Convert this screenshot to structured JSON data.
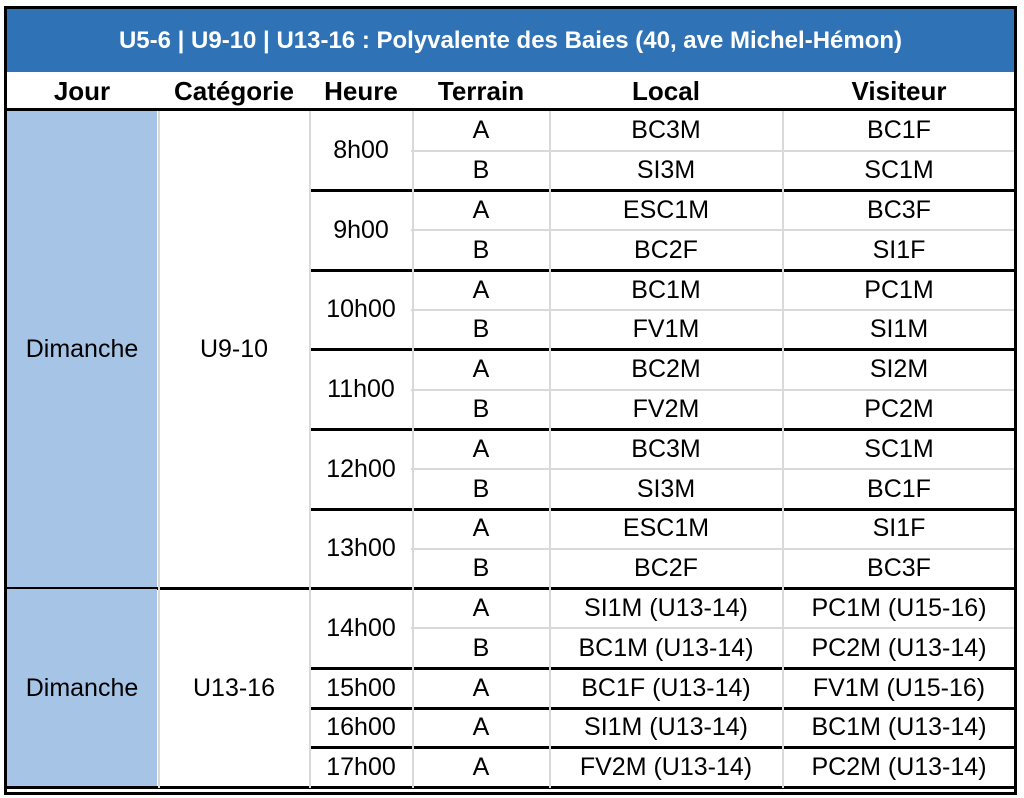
{
  "title": "U5-6 | U9-10 | U13-16  : Polyvalente des Baies (40, ave Michel-Hémon)",
  "headers": {
    "jour": "Jour",
    "categorie": "Catégorie",
    "heure": "Heure",
    "terrain": "Terrain",
    "local": "Local",
    "visiteur": "Visiteur"
  },
  "blocks": [
    {
      "jour": "Dimanche",
      "categorie": "U9-10",
      "slots": [
        {
          "heure": "8h00",
          "games": [
            {
              "terrain": "A",
              "local": "BC3M",
              "visiteur": "BC1F"
            },
            {
              "terrain": "B",
              "local": "SI3M",
              "visiteur": "SC1M"
            }
          ]
        },
        {
          "heure": "9h00",
          "games": [
            {
              "terrain": "A",
              "local": "ESC1M",
              "visiteur": "BC3F"
            },
            {
              "terrain": "B",
              "local": "BC2F",
              "visiteur": "SI1F"
            }
          ]
        },
        {
          "heure": "10h00",
          "games": [
            {
              "terrain": "A",
              "local": "BC1M",
              "visiteur": "PC1M"
            },
            {
              "terrain": "B",
              "local": "FV1M",
              "visiteur": "SI1M"
            }
          ]
        },
        {
          "heure": "11h00",
          "games": [
            {
              "terrain": "A",
              "local": "BC2M",
              "visiteur": "SI2M"
            },
            {
              "terrain": "B",
              "local": "FV2M",
              "visiteur": "PC2M"
            }
          ]
        },
        {
          "heure": "12h00",
          "games": [
            {
              "terrain": "A",
              "local": "BC3M",
              "visiteur": "SC1M"
            },
            {
              "terrain": "B",
              "local": "SI3M",
              "visiteur": "BC1F"
            }
          ]
        },
        {
          "heure": "13h00",
          "games": [
            {
              "terrain": "A",
              "local": "ESC1M",
              "visiteur": "SI1F"
            },
            {
              "terrain": "B",
              "local": "BC2F",
              "visiteur": "BC3F"
            }
          ]
        }
      ]
    },
    {
      "jour": "Dimanche",
      "categorie": "U13-16",
      "slots": [
        {
          "heure": "14h00",
          "games": [
            {
              "terrain": "A",
              "local": "SI1M (U13-14)",
              "visiteur": "PC1M (U15-16)"
            },
            {
              "terrain": "B",
              "local": "BC1M (U13-14)",
              "visiteur": "PC2M (U13-14)"
            }
          ]
        },
        {
          "heure": "15h00",
          "games": [
            {
              "terrain": "A",
              "local": "BC1F (U13-14)",
              "visiteur": "FV1M (U15-16)"
            }
          ]
        },
        {
          "heure": "16h00",
          "games": [
            {
              "terrain": "A",
              "local": "SI1M (U13-14)",
              "visiteur": "BC1M (U13-14)"
            }
          ]
        },
        {
          "heure": "17h00",
          "games": [
            {
              "terrain": "A",
              "local": "FV2M (U13-14)",
              "visiteur": "PC2M (U13-14)"
            }
          ]
        }
      ]
    }
  ]
}
